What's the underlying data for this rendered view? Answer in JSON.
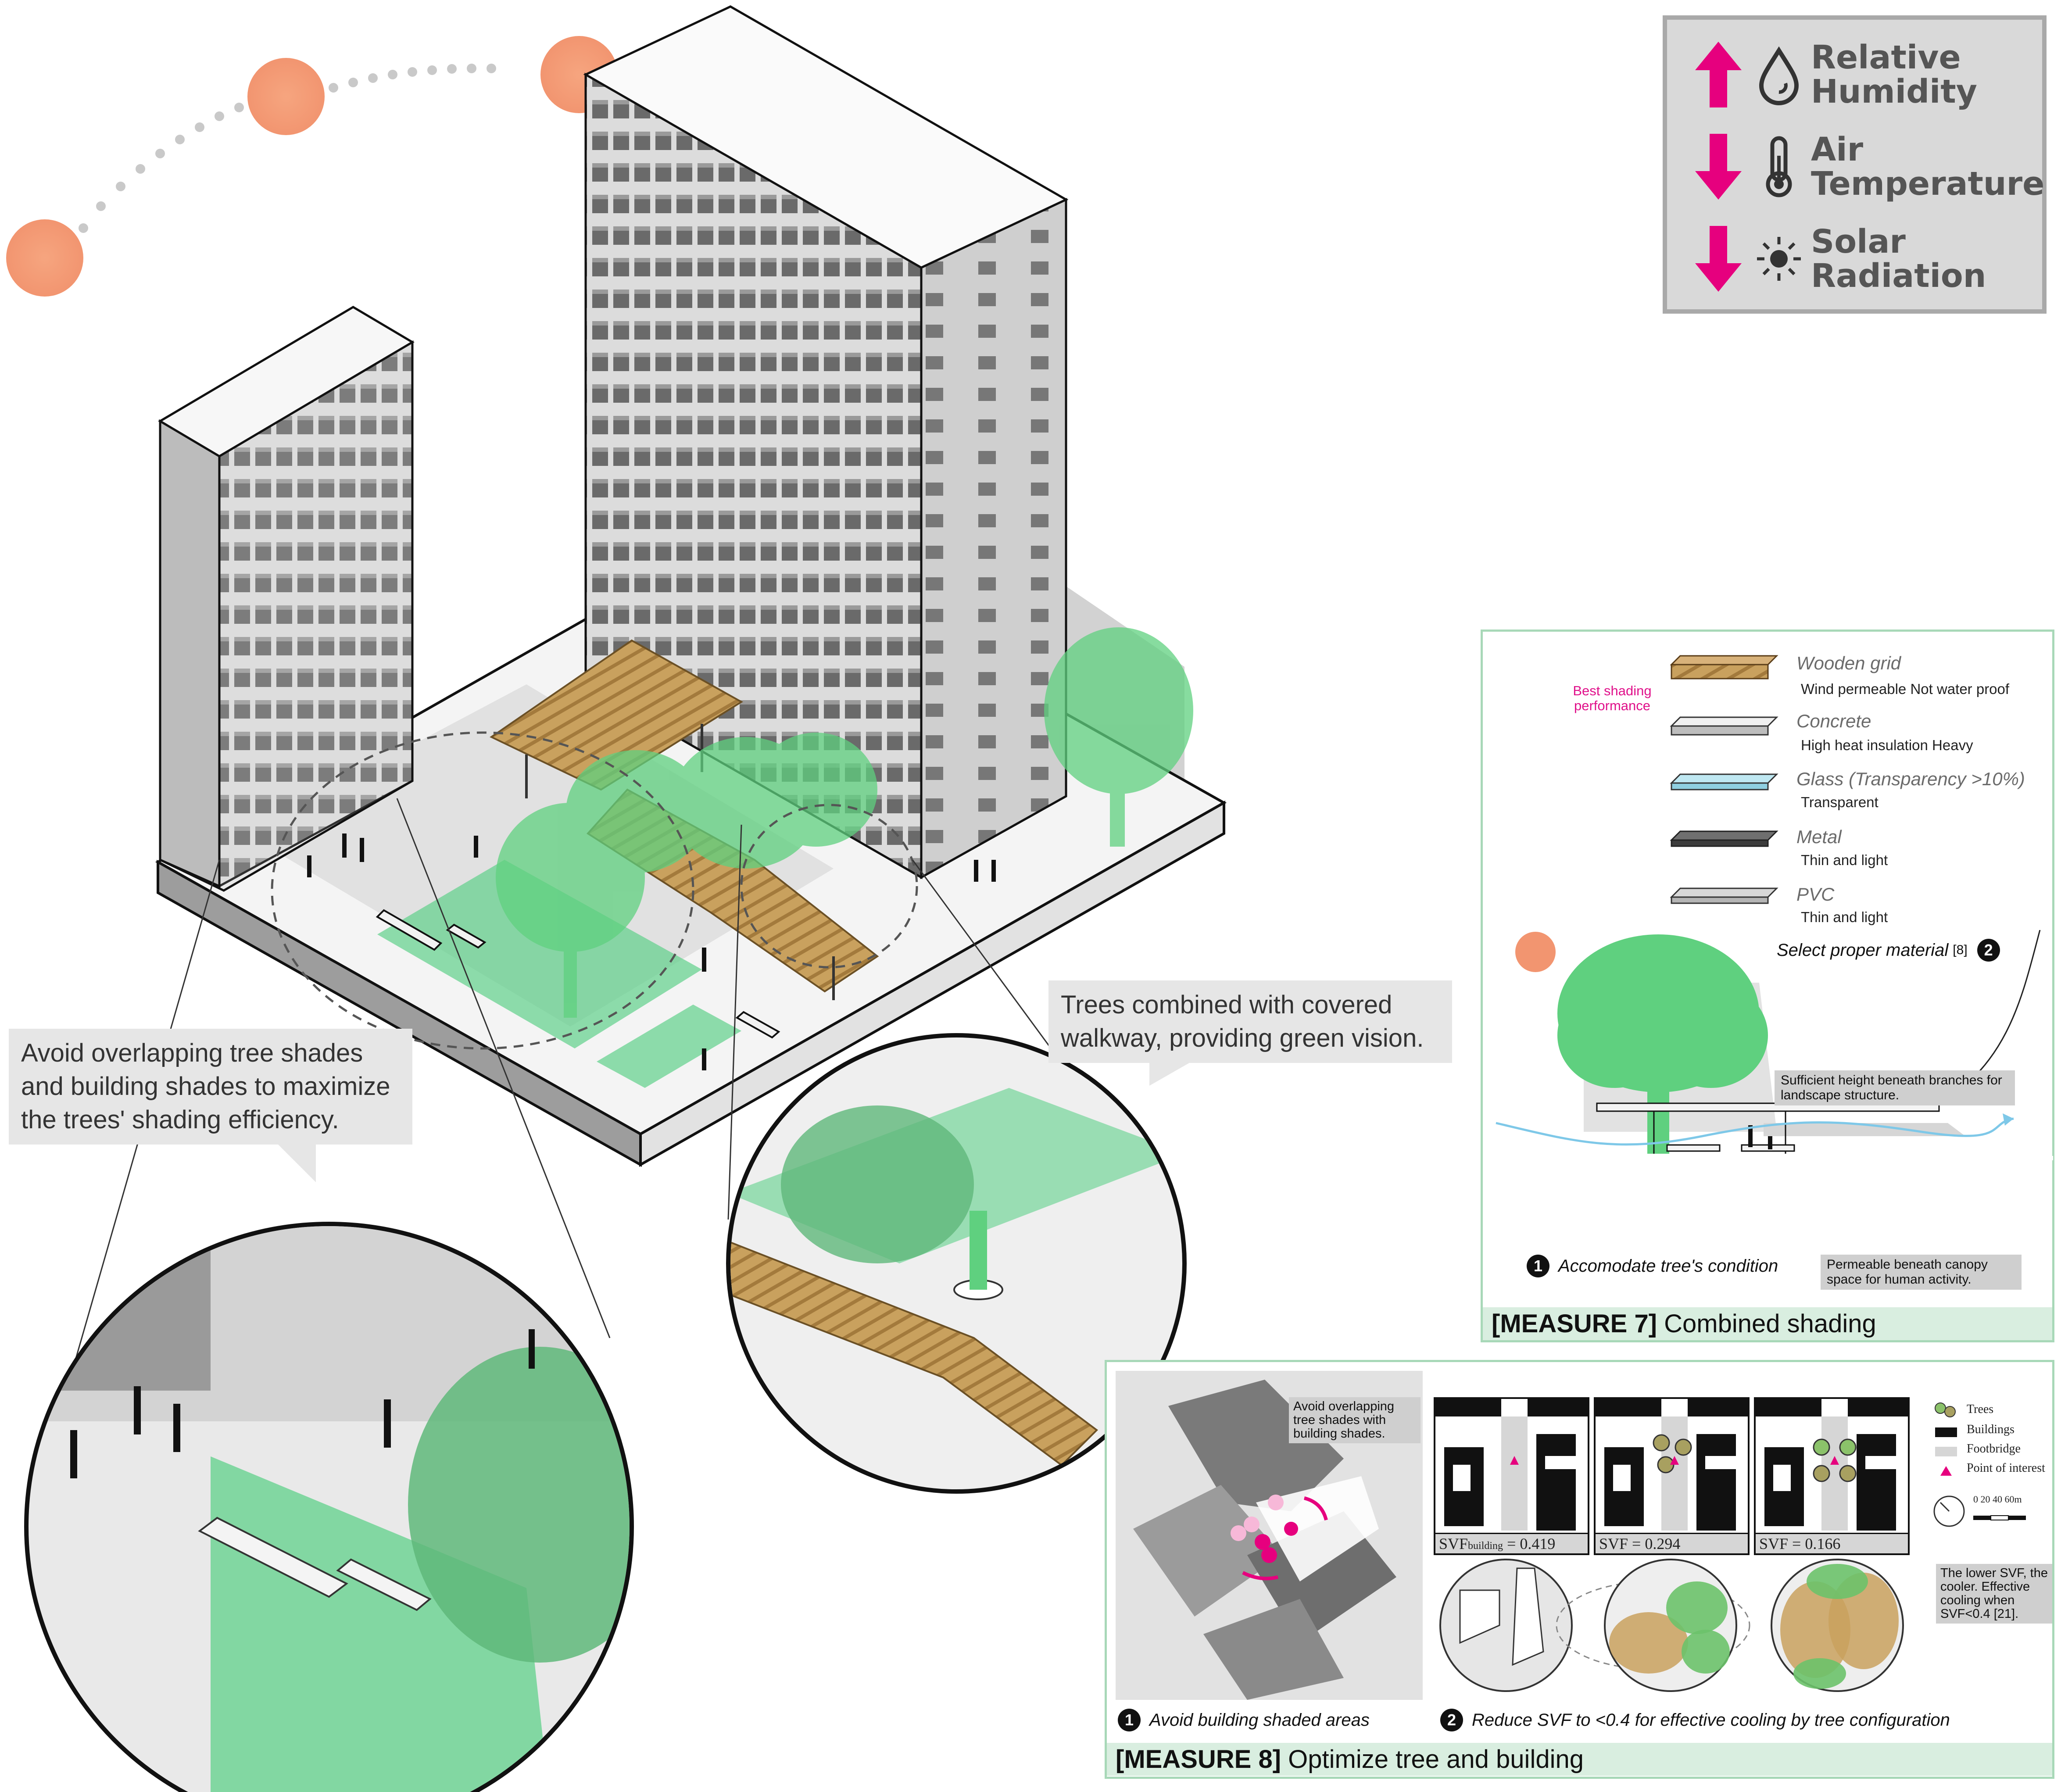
{
  "legend": {
    "rows": [
      {
        "direction": "up",
        "icon": "humidity-drop-icon",
        "label": "Relative Humidity"
      },
      {
        "direction": "down",
        "icon": "thermometer-icon",
        "label": "Air Temperature"
      },
      {
        "direction": "down",
        "icon": "sun-icon",
        "label": "Solar Radiation"
      }
    ],
    "arrow_color": "#e6007e"
  },
  "callouts": {
    "trees_walkway": "Trees combined with covered walkway, providing green vision.",
    "avoid_overlap": "Avoid overlapping tree shades and building shades to maximize the trees' shading efficiency."
  },
  "measure7": {
    "materials": [
      {
        "name": "Wooden grid",
        "props": "Wind permeable   Not water proof",
        "swatch": "wood"
      },
      {
        "name": "Concrete",
        "props": "High heat insulation   Heavy",
        "swatch": "concrete"
      },
      {
        "name": "Glass (Transparency >10%)",
        "props": "Transparent",
        "swatch": "glass"
      },
      {
        "name": "Metal",
        "props": "Thin and light",
        "swatch": "metal"
      },
      {
        "name": "PVC",
        "props": "Thin and light",
        "swatch": "pvc"
      }
    ],
    "best_shading": "Best shading performance",
    "step2": "Select proper material",
    "step2_ref": "[8]",
    "step2_num": "2",
    "note_height": "Sufficient height beneath branches for landscape structure.",
    "note_permeable": "Permeable beneath canopy space for human activity.",
    "step1": "Accomodate tree's condition",
    "step1_num": "1",
    "title_tag": "[MEASURE 7]",
    "title_text": "Combined shading"
  },
  "measure8": {
    "map_note": "Avoid overlapping tree shades with building shades.",
    "svf": [
      {
        "label": "SVF",
        "sub": "building",
        "value": "= 0.419"
      },
      {
        "label": "SVF",
        "sub": "",
        "value": "= 0.294"
      },
      {
        "label": "SVF",
        "sub": "",
        "value": "= 0.166"
      }
    ],
    "legend": {
      "trees": "Trees",
      "buildings": "Buildings",
      "footbridge": "Footbridge",
      "poi": "Point of interest",
      "scale": "0   20  40  60m"
    },
    "svf_note": "The lower SVF, the cooler. Effective cooling when SVF<0.4 [21].",
    "step1": "Avoid building shaded areas",
    "step1_num": "1",
    "step2": "Reduce SVF to <0.4 for effective cooling by tree configuration",
    "step2_num": "2",
    "title_tag": "[MEASURE 8]",
    "title_text": "Optimize tree and building"
  },
  "colors": {
    "sun": "#f4a07a",
    "tree": "#5fd07f",
    "wood": "#c9a15e",
    "panel_border": "#a8d8b8",
    "pink": "#e6007e"
  }
}
